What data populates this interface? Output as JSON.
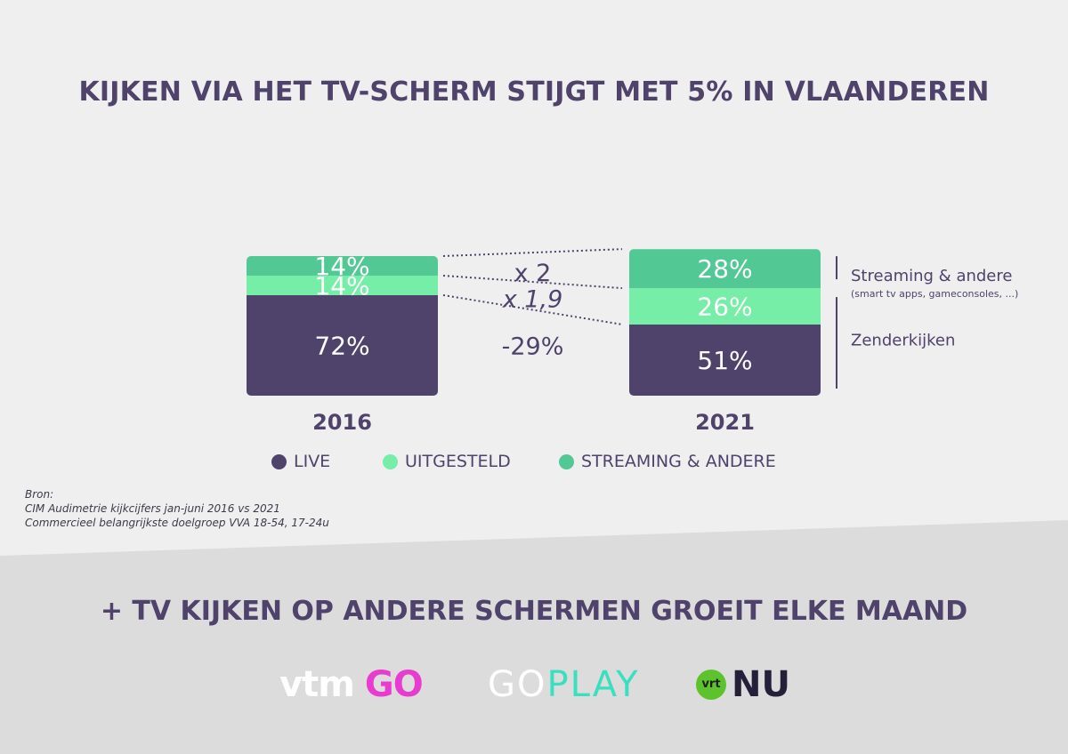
{
  "title": "KIJKEN VIA HET TV-SCHERM STIJGT MET 5% IN VLAANDEREN",
  "subtitle": "+ TV KIJKEN OP ANDERE SCHERMEN GROEIT ELKE MAAND",
  "colors": {
    "live": "#4f426b",
    "uitgesteld": "#76eea7",
    "streaming": "#52c995",
    "text": "#4f426b"
  },
  "chart_data": {
    "type": "bar",
    "stacked": true,
    "categories": [
      "2016",
      "2021"
    ],
    "series": [
      {
        "name": "LIVE",
        "values": [
          72,
          51
        ]
      },
      {
        "name": "UITGESTELD",
        "values": [
          14,
          26
        ]
      },
      {
        "name": "STREAMING & ANDERE",
        "values": [
          14,
          28
        ]
      }
    ],
    "data_labels": [
      [
        "72%",
        "14%",
        "14%"
      ],
      [
        "51%",
        "26%",
        "28%"
      ]
    ],
    "changes": [
      {
        "series": "STREAMING & ANDERE",
        "label": "x 2"
      },
      {
        "series": "UITGESTELD",
        "label": "x 1,9"
      },
      {
        "series": "LIVE",
        "label": "-29%"
      }
    ],
    "brackets": [
      {
        "label": "Streaming & andere",
        "sublabel": "(smart tv apps, gameconsoles, ...)"
      },
      {
        "label": "Zenderkijken"
      }
    ],
    "legend_position": "bottom"
  },
  "source": {
    "heading": "Bron:",
    "lines": [
      "CIM Audimetrie kijkcijfers jan-juni 2016 vs 2021",
      "Commercieel belangrijkste doelgroep VVA 18-54, 17-24u"
    ]
  },
  "logos": {
    "vtm": "vtm",
    "vtm_go": "GO",
    "goplay_go": "GO",
    "goplay_play": "PLAY",
    "vrt": "vrt",
    "nu": "NU"
  }
}
